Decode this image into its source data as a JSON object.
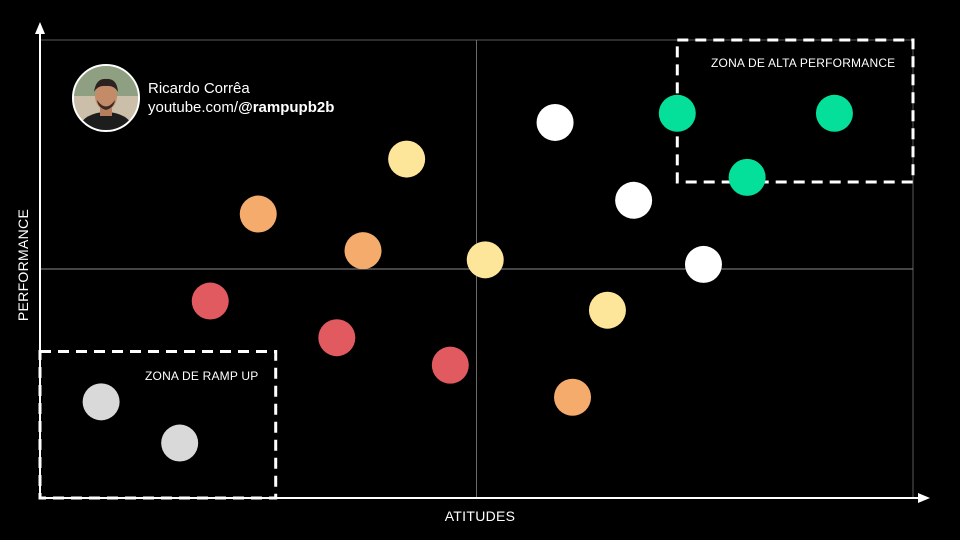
{
  "author": {
    "name": "Ricardo Corrêa",
    "handle_prefix": "youtube.com/",
    "handle": "@rampupb2b"
  },
  "chart_data": {
    "type": "scatter",
    "xlabel": "ATITUDES",
    "ylabel": "PERFORMANCE",
    "xlim": [
      0,
      10
    ],
    "ylim": [
      0,
      10
    ],
    "grid": "quadrant lines at midpoint",
    "zones": [
      {
        "label": "ZONA DE ALTA PERFORMANCE",
        "x": [
          7.3,
          10
        ],
        "y": [
          6.9,
          10
        ]
      },
      {
        "label": "ZONA DE RAMP UP",
        "x": [
          0,
          2.7
        ],
        "y": [
          0,
          3.2
        ]
      }
    ],
    "colors": {
      "green": "#04e09a",
      "white": "#ffffff",
      "yellow": "#fde59a",
      "orange": "#f5ab6b",
      "red": "#e05a5f",
      "gray": "#d9d9d9"
    },
    "points": [
      {
        "x": 9.1,
        "y": 8.4,
        "color": "green"
      },
      {
        "x": 7.3,
        "y": 8.4,
        "color": "green"
      },
      {
        "x": 8.1,
        "y": 7.0,
        "color": "green"
      },
      {
        "x": 5.9,
        "y": 8.2,
        "color": "white"
      },
      {
        "x": 6.8,
        "y": 6.5,
        "color": "white"
      },
      {
        "x": 7.6,
        "y": 5.1,
        "color": "white"
      },
      {
        "x": 4.2,
        "y": 7.4,
        "color": "yellow"
      },
      {
        "x": 5.1,
        "y": 5.2,
        "color": "yellow"
      },
      {
        "x": 6.5,
        "y": 4.1,
        "color": "yellow"
      },
      {
        "x": 2.5,
        "y": 6.2,
        "color": "orange"
      },
      {
        "x": 3.7,
        "y": 5.4,
        "color": "orange"
      },
      {
        "x": 6.1,
        "y": 2.2,
        "color": "orange"
      },
      {
        "x": 1.95,
        "y": 4.3,
        "color": "red"
      },
      {
        "x": 3.4,
        "y": 3.5,
        "color": "red"
      },
      {
        "x": 4.7,
        "y": 2.9,
        "color": "red"
      },
      {
        "x": 0.7,
        "y": 2.1,
        "color": "gray"
      },
      {
        "x": 1.6,
        "y": 1.2,
        "color": "gray"
      }
    ]
  }
}
